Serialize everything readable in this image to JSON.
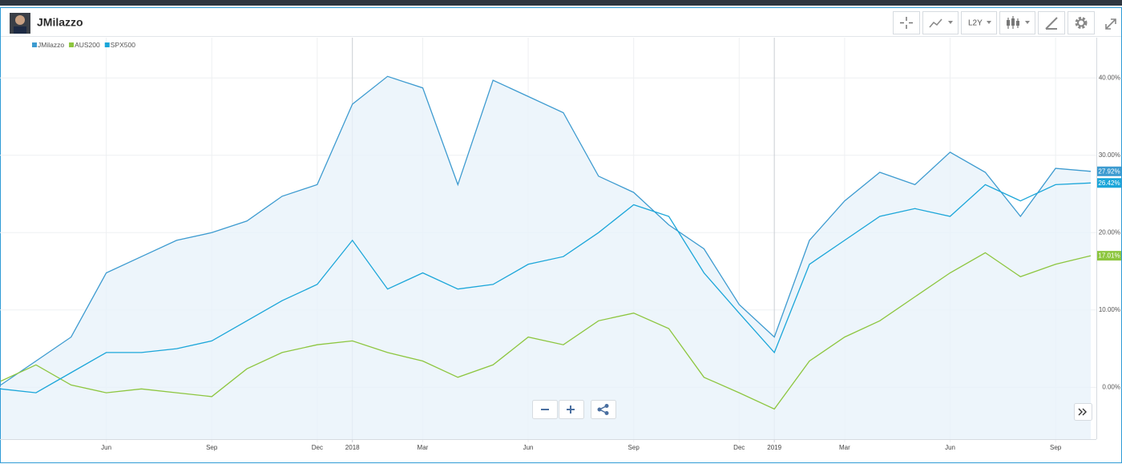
{
  "header": {
    "title": "JMilazzo",
    "range_button": "L2Y"
  },
  "chart_data": {
    "type": "line",
    "x": [
      "2017-03",
      "2017-04",
      "2017-05",
      "2017-06",
      "2017-07",
      "2017-08",
      "2017-09",
      "2017-10",
      "2017-11",
      "2017-12",
      "2018-01",
      "2018-02",
      "2018-03",
      "2018-04",
      "2018-05",
      "2018-06",
      "2018-07",
      "2018-08",
      "2018-09",
      "2018-10",
      "2018-11",
      "2018-12",
      "2019-01",
      "2019-02",
      "2019-03",
      "2019-04",
      "2019-05",
      "2019-06",
      "2019-07",
      "2019-08",
      "2019-09",
      "2019-10"
    ],
    "xlim": [
      "2017-03",
      "2019-10"
    ],
    "xticks": [
      {
        "value": "2017-06",
        "label": "Jun"
      },
      {
        "value": "2017-09",
        "label": "Sep"
      },
      {
        "value": "2017-12",
        "label": "Dec"
      },
      {
        "value": "2018-01",
        "label": "2018"
      },
      {
        "value": "2018-03",
        "label": "Mar"
      },
      {
        "value": "2018-06",
        "label": "Jun"
      },
      {
        "value": "2018-09",
        "label": "Sep"
      },
      {
        "value": "2018-12",
        "label": "Dec"
      },
      {
        "value": "2019-01",
        "label": "2019"
      },
      {
        "value": "2019-03",
        "label": "Mar"
      },
      {
        "value": "2019-06",
        "label": "Jun"
      },
      {
        "value": "2019-09",
        "label": "Sep"
      }
    ],
    "ylim": [
      -6.7,
      45.2
    ],
    "yticks": [
      {
        "value": 0,
        "label": "0.00%"
      },
      {
        "value": 10,
        "label": "10.00%"
      },
      {
        "value": 20,
        "label": "20.00%"
      },
      {
        "value": 30,
        "label": "30.00%"
      },
      {
        "value": 40,
        "label": "40.00%"
      }
    ],
    "grid": true,
    "legend": "top-left",
    "series": [
      {
        "name": "JMilazzo",
        "color": "#3d9bd0",
        "area": true,
        "values": [
          0.3,
          3.4,
          6.5,
          14.8,
          16.9,
          19,
          20,
          21.5,
          24.7,
          26.2,
          36.6,
          40.2,
          38.7,
          26.2,
          39.7,
          37.6,
          35.5,
          27.3,
          25.2,
          21,
          17.9,
          10.7,
          6.5,
          19,
          24.1,
          27.8,
          26.2,
          30.4,
          27.8,
          22.1,
          28.3,
          27.92
        ],
        "value_labels": [
          null,
          null,
          null,
          null,
          null,
          null,
          null,
          null,
          null,
          null,
          null,
          null,
          null,
          null,
          null,
          null,
          null,
          null,
          null,
          null,
          null,
          null,
          null,
          null,
          null,
          null,
          null,
          null,
          null,
          null,
          null,
          "27.92%"
        ]
      },
      {
        "name": "AUS200",
        "color": "#8dc63f",
        "values": [
          0.8,
          2.9,
          0.3,
          -0.7,
          -0.2,
          -0.7,
          -1.2,
          2.4,
          4.5,
          5.5,
          6,
          4.5,
          3.4,
          1.3,
          2.9,
          6.5,
          5.5,
          8.6,
          9.6,
          7.6,
          1.3,
          -0.7,
          -2.8,
          3.4,
          6.5,
          8.6,
          11.7,
          14.8,
          17.4,
          14.3,
          15.9,
          17.01
        ],
        "value_labels": [
          null,
          null,
          null,
          null,
          null,
          null,
          null,
          null,
          null,
          null,
          null,
          null,
          null,
          null,
          null,
          null,
          null,
          null,
          null,
          null,
          null,
          null,
          null,
          null,
          null,
          null,
          null,
          null,
          null,
          null,
          null,
          "17.01%"
        ]
      },
      {
        "name": "SPX500",
        "color": "#1ba6d9",
        "values": [
          -0.2,
          -0.7,
          1.9,
          4.5,
          4.5,
          5,
          6,
          8.6,
          11.2,
          13.3,
          19,
          12.7,
          14.8,
          12.7,
          13.3,
          15.9,
          16.9,
          20,
          23.6,
          22.1,
          14.8,
          9.6,
          4.5,
          15.9,
          19,
          22.1,
          23.1,
          22.1,
          26.2,
          24.1,
          26.2,
          26.42
        ],
        "value_labels": [
          null,
          null,
          null,
          null,
          null,
          null,
          null,
          null,
          null,
          null,
          null,
          null,
          null,
          null,
          null,
          null,
          null,
          null,
          null,
          null,
          null,
          null,
          null,
          null,
          null,
          null,
          null,
          null,
          null,
          null,
          null,
          "26.42%"
        ]
      }
    ]
  }
}
